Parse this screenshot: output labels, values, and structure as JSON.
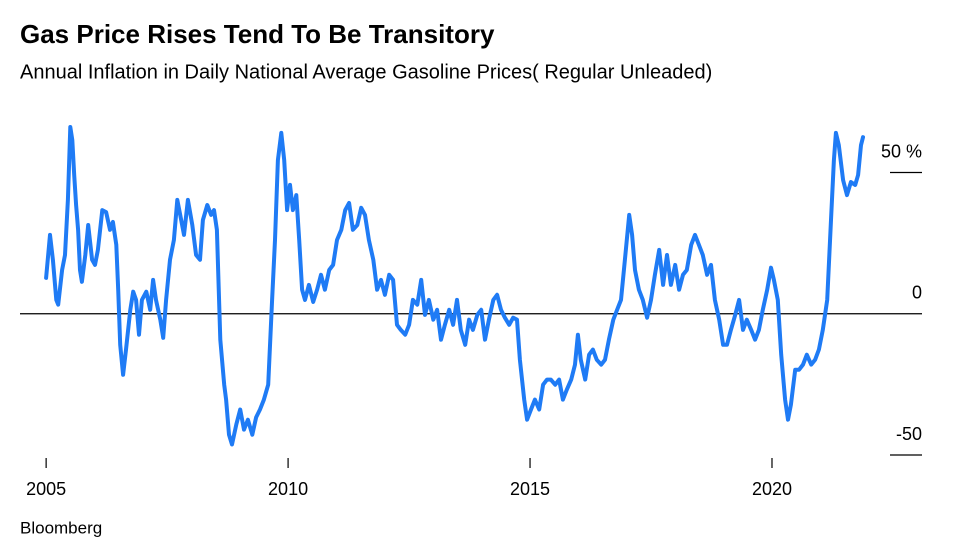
{
  "chart_data": {
    "type": "line",
    "title": "Gas Price Rises Tend To Be Transitory",
    "subtitle": "Annual Inflation in Daily National Average Gasoline Prices( Regular Unleaded)",
    "source": "Bloomberg",
    "xlim": [
      2004.46,
      2023.1
    ],
    "xticks": [
      2005,
      2010,
      2015,
      2020
    ],
    "ylim": [
      -50,
      70
    ],
    "yticks": [
      -50,
      0,
      {
        "value": 50,
        "label": "50 %"
      }
    ],
    "series": [
      {
        "color": "#1f7bf5",
        "x": [
          2005.0,
          2005.08,
          2005.14,
          2005.21,
          2005.25,
          2005.33,
          2005.39,
          2005.45,
          2005.5,
          2005.54,
          2005.58,
          2005.62,
          2005.66,
          2005.7,
          2005.74,
          2005.81,
          2005.87,
          2005.95,
          2006.01,
          2006.07,
          2006.16,
          2006.24,
          2006.32,
          2006.38,
          2006.45,
          2006.49,
          2006.53,
          2006.59,
          2006.65,
          2006.74,
          2006.8,
          2006.86,
          2006.92,
          2006.98,
          2007.07,
          2007.15,
          2007.21,
          2007.27,
          2007.36,
          2007.42,
          2007.48,
          2007.56,
          2007.64,
          2007.71,
          2007.77,
          2007.85,
          2007.93,
          2008.02,
          2008.1,
          2008.18,
          2008.24,
          2008.33,
          2008.41,
          2008.47,
          2008.53,
          2008.6,
          2008.68,
          2008.72,
          2008.78,
          2008.84,
          2008.93,
          2009.01,
          2009.09,
          2009.17,
          2009.26,
          2009.34,
          2009.42,
          2009.5,
          2009.59,
          2009.67,
          2009.73,
          2009.79,
          2009.86,
          2009.92,
          2009.98,
          2010.04,
          2010.1,
          2010.17,
          2010.23,
          2010.29,
          2010.35,
          2010.43,
          2010.52,
          2010.6,
          2010.68,
          2010.76,
          2010.85,
          2010.93,
          2011.01,
          2011.1,
          2011.18,
          2011.26,
          2011.34,
          2011.43,
          2011.51,
          2011.59,
          2011.67,
          2011.76,
          2011.84,
          2011.92,
          2012.0,
          2012.09,
          2012.17,
          2012.25,
          2012.33,
          2012.42,
          2012.5,
          2012.58,
          2012.67,
          2012.75,
          2012.83,
          2012.91,
          2013.0,
          2013.08,
          2013.16,
          2013.24,
          2013.33,
          2013.41,
          2013.49,
          2013.57,
          2013.66,
          2013.74,
          2013.82,
          2013.91,
          2013.99,
          2014.07,
          2014.15,
          2014.24,
          2014.32,
          2014.4,
          2014.48,
          2014.57,
          2014.65,
          2014.73,
          2014.79,
          2014.88,
          2014.94,
          2015.02,
          2015.1,
          2015.19,
          2015.27,
          2015.35,
          2015.43,
          2015.52,
          2015.6,
          2015.68,
          2015.76,
          2015.85,
          2015.93,
          2015.99,
          2016.05,
          2016.14,
          2016.22,
          2016.3,
          2016.38,
          2016.47,
          2016.55,
          2016.63,
          2016.72,
          2016.8,
          2016.88,
          2016.96,
          2017.05,
          2017.11,
          2017.17,
          2017.25,
          2017.33,
          2017.42,
          2017.5,
          2017.58,
          2017.67,
          2017.75,
          2017.83,
          2017.91,
          2018.0,
          2018.08,
          2018.16,
          2018.24,
          2018.33,
          2018.41,
          2018.49,
          2018.57,
          2018.66,
          2018.74,
          2018.82,
          2018.91,
          2018.99,
          2019.07,
          2019.15,
          2019.24,
          2019.32,
          2019.4,
          2019.48,
          2019.57,
          2019.65,
          2019.73,
          2019.81,
          2019.9,
          2019.98,
          2020.04,
          2020.12,
          2020.19,
          2020.27,
          2020.33,
          2020.39,
          2020.48,
          2020.56,
          2020.64,
          2020.72,
          2020.81,
          2020.89,
          2020.97,
          2021.05,
          2021.14,
          2021.22,
          2021.28,
          2021.32,
          2021.38,
          2021.47,
          2021.55,
          2021.63,
          2021.72,
          2021.78,
          2021.84,
          2021.88
        ],
        "values": [
          12.7,
          27.9,
          19.1,
          4.9,
          3.2,
          15.5,
          20.8,
          40.3,
          66.1,
          61.5,
          49.1,
          38.5,
          29.7,
          15.5,
          11.3,
          20.8,
          31.4,
          19.1,
          17.3,
          22.6,
          36.7,
          36.0,
          29.7,
          32.5,
          24.4,
          8.5,
          -11.0,
          -21.6,
          -12.7,
          1.4,
          7.8,
          4.9,
          -7.4,
          4.9,
          7.8,
          1.4,
          12.0,
          4.9,
          -2.1,
          -8.5,
          4.9,
          19.1,
          26.1,
          40.3,
          35.0,
          27.9,
          40.3,
          31.4,
          20.8,
          19.1,
          33.2,
          38.5,
          35.0,
          36.7,
          29.7,
          -9.2,
          -25.1,
          -30.4,
          -42.8,
          -46.3,
          -39.2,
          -33.9,
          -41.0,
          -37.5,
          -42.8,
          -36.7,
          -33.9,
          -30.4,
          -25.1,
          4.9,
          26.1,
          54.4,
          64.0,
          54.4,
          36.7,
          45.6,
          36.7,
          42.0,
          26.1,
          8.5,
          4.9,
          10.2,
          4.2,
          8.5,
          13.8,
          8.5,
          15.5,
          17.3,
          26.1,
          29.7,
          36.7,
          39.2,
          29.7,
          31.4,
          37.5,
          35.0,
          26.1,
          19.1,
          8.5,
          12.0,
          6.7,
          13.8,
          12.0,
          -3.9,
          -5.7,
          -7.4,
          -3.9,
          4.9,
          3.2,
          12.0,
          -0.4,
          4.9,
          -2.1,
          1.4,
          -9.2,
          -3.9,
          1.4,
          -3.9,
          4.9,
          -5.7,
          -11.0,
          -2.1,
          -5.7,
          -0.4,
          1.4,
          -9.2,
          -2.1,
          4.9,
          6.7,
          1.4,
          -1.4,
          -3.9,
          -1.4,
          -2.1,
          -16.3,
          -30.4,
          -37.5,
          -33.9,
          -30.4,
          -33.9,
          -25.1,
          -23.3,
          -23.3,
          -25.1,
          -23.3,
          -30.4,
          -26.9,
          -23.3,
          -18.0,
          -7.4,
          -16.3,
          -23.3,
          -14.5,
          -12.7,
          -16.3,
          -18.0,
          -16.3,
          -9.2,
          -2.1,
          1.4,
          4.9,
          19.1,
          35.0,
          27.9,
          15.5,
          8.5,
          4.9,
          -1.4,
          4.9,
          13.8,
          22.6,
          10.2,
          20.8,
          10.2,
          17.3,
          8.5,
          13.8,
          15.5,
          24.4,
          27.9,
          24.4,
          20.8,
          13.8,
          17.3,
          4.9,
          -2.1,
          -11.0,
          -11.0,
          -5.7,
          -0.4,
          4.9,
          -5.7,
          -2.1,
          -5.7,
          -9.2,
          -5.7,
          1.4,
          8.5,
          16.3,
          12.0,
          4.9,
          -14.5,
          -30.4,
          -37.5,
          -32.2,
          -19.8,
          -19.8,
          -18.0,
          -14.5,
          -18.0,
          -16.3,
          -12.7,
          -5.7,
          4.9,
          33.2,
          54.4,
          64.0,
          59.7,
          47.3,
          42.0,
          46.6,
          45.6,
          49.1,
          59.7,
          62.5
        ]
      }
    ]
  }
}
